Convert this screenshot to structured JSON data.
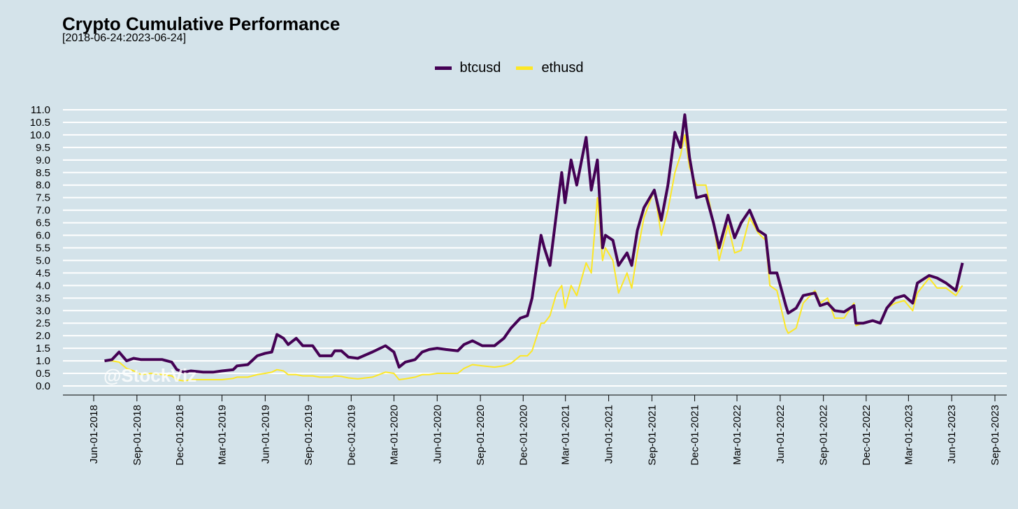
{
  "chart_data": {
    "type": "line",
    "title": "Crypto Cumulative Performance",
    "subtitle": "[2018-06-24:2023-06-24]",
    "watermark": "@StockViz",
    "xlabel": "",
    "ylabel": "",
    "ylim": [
      0,
      11
    ],
    "y_ticks": [
      "0.0",
      "0.5",
      "1.0",
      "1.5",
      "2.0",
      "2.5",
      "3.0",
      "3.5",
      "4.0",
      "4.5",
      "5.0",
      "5.5",
      "6.0",
      "6.5",
      "7.0",
      "7.5",
      "8.0",
      "8.5",
      "9.0",
      "9.5",
      "10.0",
      "10.5",
      "11.0"
    ],
    "x_ticks": [
      "Jun-01-2018",
      "Sep-01-2018",
      "Dec-01-2018",
      "Mar-01-2019",
      "Jun-01-2019",
      "Sep-01-2019",
      "Dec-01-2019",
      "Mar-01-2020",
      "Jun-01-2020",
      "Sep-01-2020",
      "Dec-01-2020",
      "Mar-01-2021",
      "Jun-01-2021",
      "Sep-01-2021",
      "Dec-01-2021",
      "Mar-01-2022",
      "Jun-01-2022",
      "Sep-01-2022",
      "Dec-01-2022",
      "Mar-01-2023",
      "Jun-01-2023",
      "Sep-01-2023"
    ],
    "x_range": [
      "2018-05-01",
      "2023-09-30"
    ],
    "grid": true,
    "legend_position": "top-center",
    "series": [
      {
        "name": "btcusd",
        "color": "#440154",
        "points": [
          [
            "2018-06-24",
            1.0
          ],
          [
            "2018-07-10",
            1.05
          ],
          [
            "2018-07-25",
            1.35
          ],
          [
            "2018-08-10",
            1.0
          ],
          [
            "2018-08-25",
            1.1
          ],
          [
            "2018-09-10",
            1.05
          ],
          [
            "2018-10-01",
            1.05
          ],
          [
            "2018-10-25",
            1.05
          ],
          [
            "2018-11-14",
            0.95
          ],
          [
            "2018-11-25",
            0.65
          ],
          [
            "2018-12-10",
            0.55
          ],
          [
            "2018-12-25",
            0.6
          ],
          [
            "2019-01-20",
            0.55
          ],
          [
            "2019-02-10",
            0.55
          ],
          [
            "2019-03-01",
            0.6
          ],
          [
            "2019-03-25",
            0.65
          ],
          [
            "2019-04-02",
            0.8
          ],
          [
            "2019-04-25",
            0.85
          ],
          [
            "2019-05-15",
            1.2
          ],
          [
            "2019-06-01",
            1.3
          ],
          [
            "2019-06-15",
            1.35
          ],
          [
            "2019-06-26",
            2.05
          ],
          [
            "2019-07-10",
            1.9
          ],
          [
            "2019-07-20",
            1.65
          ],
          [
            "2019-08-06",
            1.9
          ],
          [
            "2019-08-20",
            1.6
          ],
          [
            "2019-09-10",
            1.6
          ],
          [
            "2019-09-25",
            1.2
          ],
          [
            "2019-10-20",
            1.2
          ],
          [
            "2019-10-27",
            1.4
          ],
          [
            "2019-11-10",
            1.4
          ],
          [
            "2019-11-25",
            1.15
          ],
          [
            "2019-12-15",
            1.1
          ],
          [
            "2020-01-15",
            1.35
          ],
          [
            "2020-02-12",
            1.6
          ],
          [
            "2020-03-01",
            1.35
          ],
          [
            "2020-03-12",
            0.75
          ],
          [
            "2020-03-25",
            0.95
          ],
          [
            "2020-04-15",
            1.05
          ],
          [
            "2020-04-30",
            1.35
          ],
          [
            "2020-05-15",
            1.45
          ],
          [
            "2020-06-01",
            1.5
          ],
          [
            "2020-06-20",
            1.45
          ],
          [
            "2020-07-15",
            1.4
          ],
          [
            "2020-07-28",
            1.65
          ],
          [
            "2020-08-15",
            1.8
          ],
          [
            "2020-09-05",
            1.6
          ],
          [
            "2020-10-01",
            1.6
          ],
          [
            "2020-10-21",
            1.9
          ],
          [
            "2020-11-05",
            2.3
          ],
          [
            "2020-11-25",
            2.7
          ],
          [
            "2020-12-10",
            2.8
          ],
          [
            "2020-12-20",
            3.5
          ],
          [
            "2021-01-08",
            6.0
          ],
          [
            "2021-01-15",
            5.5
          ],
          [
            "2021-01-27",
            4.8
          ],
          [
            "2021-02-10",
            6.9
          ],
          [
            "2021-02-21",
            8.5
          ],
          [
            "2021-02-28",
            7.3
          ],
          [
            "2021-03-13",
            9.0
          ],
          [
            "2021-03-25",
            8.0
          ],
          [
            "2021-04-14",
            9.9
          ],
          [
            "2021-04-25",
            7.8
          ],
          [
            "2021-05-08",
            9.0
          ],
          [
            "2021-05-19",
            5.5
          ],
          [
            "2021-05-25",
            6.0
          ],
          [
            "2021-06-10",
            5.8
          ],
          [
            "2021-06-22",
            4.8
          ],
          [
            "2021-07-10",
            5.3
          ],
          [
            "2021-07-20",
            4.8
          ],
          [
            "2021-08-01",
            6.2
          ],
          [
            "2021-08-15",
            7.1
          ],
          [
            "2021-09-06",
            7.8
          ],
          [
            "2021-09-21",
            6.6
          ],
          [
            "2021-10-05",
            8.0
          ],
          [
            "2021-10-20",
            10.1
          ],
          [
            "2021-11-01",
            9.5
          ],
          [
            "2021-11-10",
            10.8
          ],
          [
            "2021-11-20",
            9.1
          ],
          [
            "2021-12-05",
            7.5
          ],
          [
            "2021-12-25",
            7.6
          ],
          [
            "2022-01-10",
            6.5
          ],
          [
            "2022-01-22",
            5.5
          ],
          [
            "2022-02-10",
            6.8
          ],
          [
            "2022-02-24",
            5.9
          ],
          [
            "2022-03-10",
            6.5
          ],
          [
            "2022-03-28",
            7.0
          ],
          [
            "2022-04-15",
            6.2
          ],
          [
            "2022-05-01",
            6.0
          ],
          [
            "2022-05-10",
            4.5
          ],
          [
            "2022-05-25",
            4.5
          ],
          [
            "2022-06-13",
            3.2
          ],
          [
            "2022-06-18",
            2.9
          ],
          [
            "2022-07-05",
            3.1
          ],
          [
            "2022-07-20",
            3.6
          ],
          [
            "2022-08-14",
            3.7
          ],
          [
            "2022-08-25",
            3.2
          ],
          [
            "2022-09-10",
            3.3
          ],
          [
            "2022-09-25",
            3.0
          ],
          [
            "2022-10-15",
            2.95
          ],
          [
            "2022-11-05",
            3.2
          ],
          [
            "2022-11-09",
            2.5
          ],
          [
            "2022-11-25",
            2.5
          ],
          [
            "2022-12-15",
            2.6
          ],
          [
            "2022-12-31",
            2.5
          ],
          [
            "2023-01-14",
            3.1
          ],
          [
            "2023-02-01",
            3.5
          ],
          [
            "2023-02-20",
            3.6
          ],
          [
            "2023-03-10",
            3.3
          ],
          [
            "2023-03-20",
            4.1
          ],
          [
            "2023-04-14",
            4.4
          ],
          [
            "2023-05-01",
            4.3
          ],
          [
            "2023-05-20",
            4.1
          ],
          [
            "2023-06-10",
            3.8
          ],
          [
            "2023-06-20",
            4.6
          ],
          [
            "2023-06-24",
            4.9
          ]
        ]
      },
      {
        "name": "ethusd",
        "color": "#fde725",
        "points": [
          [
            "2018-06-24",
            1.0
          ],
          [
            "2018-07-10",
            1.0
          ],
          [
            "2018-07-25",
            0.95
          ],
          [
            "2018-08-10",
            0.7
          ],
          [
            "2018-08-25",
            0.6
          ],
          [
            "2018-09-10",
            0.45
          ],
          [
            "2018-10-01",
            0.5
          ],
          [
            "2018-10-25",
            0.45
          ],
          [
            "2018-11-14",
            0.4
          ],
          [
            "2018-11-25",
            0.25
          ],
          [
            "2018-12-10",
            0.2
          ],
          [
            "2018-12-25",
            0.25
          ],
          [
            "2019-01-20",
            0.25
          ],
          [
            "2019-02-10",
            0.25
          ],
          [
            "2019-03-01",
            0.25
          ],
          [
            "2019-03-25",
            0.3
          ],
          [
            "2019-04-02",
            0.35
          ],
          [
            "2019-04-25",
            0.35
          ],
          [
            "2019-05-15",
            0.45
          ],
          [
            "2019-06-01",
            0.5
          ],
          [
            "2019-06-15",
            0.55
          ],
          [
            "2019-06-26",
            0.65
          ],
          [
            "2019-07-10",
            0.6
          ],
          [
            "2019-07-20",
            0.45
          ],
          [
            "2019-08-06",
            0.45
          ],
          [
            "2019-08-20",
            0.4
          ],
          [
            "2019-09-10",
            0.4
          ],
          [
            "2019-09-25",
            0.35
          ],
          [
            "2019-10-20",
            0.35
          ],
          [
            "2019-10-27",
            0.4
          ],
          [
            "2019-11-10",
            0.38
          ],
          [
            "2019-11-25",
            0.32
          ],
          [
            "2019-12-15",
            0.28
          ],
          [
            "2020-01-15",
            0.35
          ],
          [
            "2020-02-12",
            0.55
          ],
          [
            "2020-03-01",
            0.5
          ],
          [
            "2020-03-12",
            0.25
          ],
          [
            "2020-03-25",
            0.28
          ],
          [
            "2020-04-15",
            0.35
          ],
          [
            "2020-04-30",
            0.45
          ],
          [
            "2020-05-15",
            0.45
          ],
          [
            "2020-06-01",
            0.5
          ],
          [
            "2020-06-20",
            0.5
          ],
          [
            "2020-07-15",
            0.5
          ],
          [
            "2020-07-28",
            0.7
          ],
          [
            "2020-08-15",
            0.85
          ],
          [
            "2020-09-05",
            0.8
          ],
          [
            "2020-10-01",
            0.75
          ],
          [
            "2020-10-21",
            0.8
          ],
          [
            "2020-11-05",
            0.9
          ],
          [
            "2020-11-25",
            1.2
          ],
          [
            "2020-12-10",
            1.2
          ],
          [
            "2020-12-20",
            1.4
          ],
          [
            "2021-01-08",
            2.5
          ],
          [
            "2021-01-15",
            2.5
          ],
          [
            "2021-01-27",
            2.8
          ],
          [
            "2021-02-10",
            3.7
          ],
          [
            "2021-02-21",
            4.0
          ],
          [
            "2021-02-28",
            3.1
          ],
          [
            "2021-03-13",
            4.0
          ],
          [
            "2021-03-25",
            3.6
          ],
          [
            "2021-04-14",
            4.9
          ],
          [
            "2021-04-25",
            4.5
          ],
          [
            "2021-05-08",
            7.5
          ],
          [
            "2021-05-19",
            5.0
          ],
          [
            "2021-05-25",
            5.5
          ],
          [
            "2021-06-10",
            5.0
          ],
          [
            "2021-06-22",
            3.7
          ],
          [
            "2021-07-10",
            4.5
          ],
          [
            "2021-07-20",
            3.9
          ],
          [
            "2021-08-01",
            5.3
          ],
          [
            "2021-08-15",
            6.7
          ],
          [
            "2021-09-06",
            7.8
          ],
          [
            "2021-09-21",
            6.0
          ],
          [
            "2021-10-05",
            7.0
          ],
          [
            "2021-10-20",
            8.5
          ],
          [
            "2021-11-01",
            9.2
          ],
          [
            "2021-11-10",
            10.0
          ],
          [
            "2021-11-20",
            8.7
          ],
          [
            "2021-12-05",
            8.0
          ],
          [
            "2021-12-25",
            8.0
          ],
          [
            "2022-01-10",
            6.5
          ],
          [
            "2022-01-22",
            5.0
          ],
          [
            "2022-02-10",
            6.4
          ],
          [
            "2022-02-24",
            5.3
          ],
          [
            "2022-03-10",
            5.4
          ],
          [
            "2022-03-28",
            6.7
          ],
          [
            "2022-04-15",
            6.1
          ],
          [
            "2022-05-01",
            5.8
          ],
          [
            "2022-05-10",
            4.0
          ],
          [
            "2022-05-25",
            3.8
          ],
          [
            "2022-06-13",
            2.3
          ],
          [
            "2022-06-18",
            2.1
          ],
          [
            "2022-07-05",
            2.3
          ],
          [
            "2022-07-20",
            3.3
          ],
          [
            "2022-08-14",
            3.8
          ],
          [
            "2022-08-25",
            3.3
          ],
          [
            "2022-09-10",
            3.5
          ],
          [
            "2022-09-25",
            2.7
          ],
          [
            "2022-10-15",
            2.7
          ],
          [
            "2022-11-05",
            3.3
          ],
          [
            "2022-11-09",
            2.4
          ],
          [
            "2022-11-25",
            2.5
          ],
          [
            "2022-12-15",
            2.6
          ],
          [
            "2022-12-31",
            2.5
          ],
          [
            "2023-01-14",
            3.1
          ],
          [
            "2023-02-01",
            3.3
          ],
          [
            "2023-02-20",
            3.4
          ],
          [
            "2023-03-10",
            3.0
          ],
          [
            "2023-03-20",
            3.7
          ],
          [
            "2023-04-14",
            4.3
          ],
          [
            "2023-05-01",
            3.9
          ],
          [
            "2023-05-20",
            3.9
          ],
          [
            "2023-06-10",
            3.6
          ],
          [
            "2023-06-20",
            3.9
          ],
          [
            "2023-06-24",
            4.0
          ]
        ]
      }
    ]
  }
}
